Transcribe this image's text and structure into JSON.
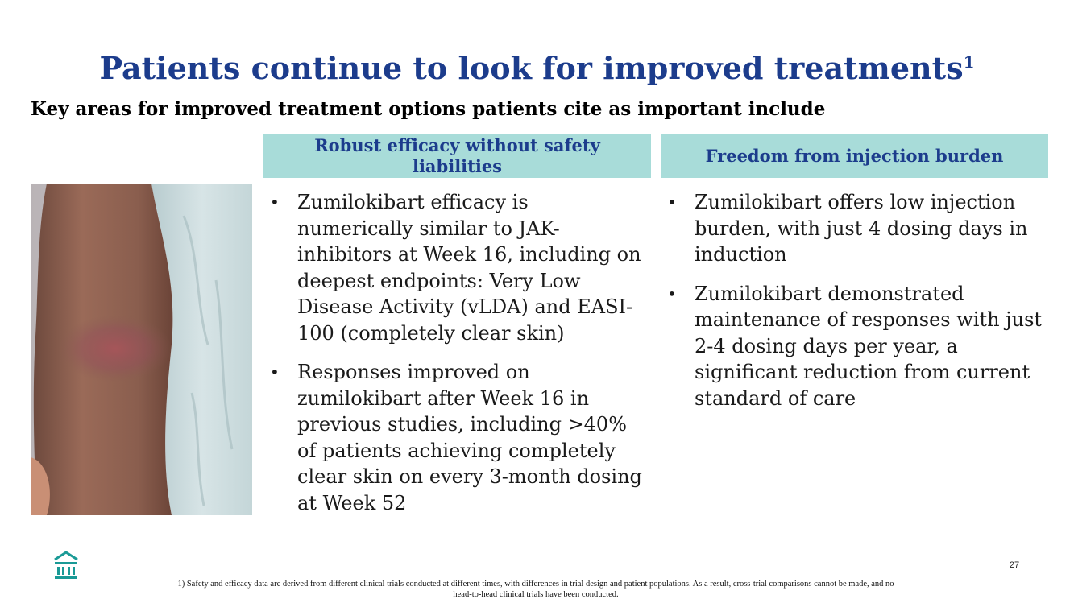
{
  "slide": {
    "title": "Patients continue to look for improved treatments",
    "title_superscript": "1",
    "subtitle": "Key areas for improved treatment options patients cite as important include",
    "page_number": "27",
    "footnote": "1) Safety and efficacy data are derived from different clinical trials conducted at different times, with differences in trial design and patient populations. As a result, cross-trial comparisons cannot be made, and no head-to-head clinical trials have been conducted."
  },
  "columns": [
    {
      "header": "Robust efficacy without safety liabilities",
      "bullets": [
        "Zumilokibart efficacy is numerically similar to JAK-inhibitors at Week 16, including on deepest endpoints: Very Low Disease Activity (vLDA) and EASI-100 (completely clear skin)",
        "Responses improved on zumilokibart after Week 16 in previous studies, including >40% of patients achieving completely clear skin on every 3-month dosing at Week 52"
      ]
    },
    {
      "header": "Freedom from injection burden",
      "bullets": [
        "Zumilokibart offers low injection burden, with just 4 dosing days in induction",
        "Zumilokibart demonstrated maintenance of responses with just 2-4 dosing days per year, a significant reduction from current standard of care"
      ]
    }
  ],
  "icons": {
    "bullet": "•",
    "logo": "building-columns-icon"
  },
  "colors": {
    "title": "#1c3c8c",
    "header_bg": "#a8dcd9",
    "logo": "#1a9a96"
  }
}
